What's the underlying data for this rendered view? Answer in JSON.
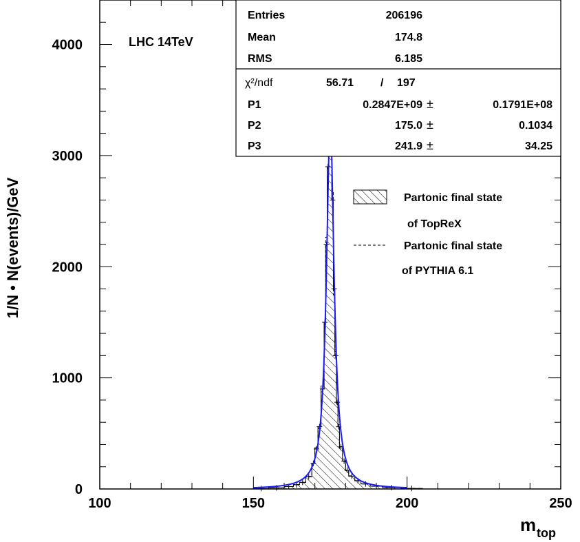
{
  "chart_data": {
    "type": "histogram",
    "ylabel": "1/N • N(events)/GeV",
    "xlabel_main": "m",
    "xlabel_sub": "top",
    "annotation": "LHC 14TeV",
    "xlim": [
      100,
      250
    ],
    "ylim": [
      0,
      4400
    ],
    "x_ticks": [
      100,
      150,
      200,
      250
    ],
    "y_ticks": [
      0,
      1000,
      2000,
      3000,
      4000
    ],
    "stats": {
      "entries_label": "Entries",
      "entries": "206196",
      "mean_label": "Mean",
      "mean": "174.8",
      "rms_label": "RMS",
      "rms": "6.185",
      "chi_label": "χ²/ndf",
      "chi_value": "56.71",
      "chi_sep": "/",
      "ndf": "197",
      "params": [
        {
          "name": "P1",
          "value": "0.2847E+09",
          "pm": "±",
          "error": "0.1791E+08"
        },
        {
          "name": "P2",
          "value": "175.0",
          "pm": "±",
          "error": "0.1034"
        },
        {
          "name": "P3",
          "value": "241.9",
          "pm": "±",
          "error": "34.25"
        }
      ]
    },
    "legend": {
      "hatched_line1": "Partonic final state",
      "hatched_line2": "of TopReX",
      "dashed_line1": "Partonic final state",
      "dashed_line2": "of PYTHIA 6.1"
    },
    "histogram": {
      "bin_edges": [
        150,
        155,
        160,
        163,
        165,
        167,
        169,
        170,
        171,
        172,
        173,
        173.5,
        174,
        174.5,
        175,
        175.5,
        176,
        176.5,
        177,
        177.5,
        178,
        179,
        180,
        181,
        183,
        185,
        188,
        192,
        198,
        205
      ],
      "values": [
        4,
        10,
        22,
        38,
        60,
        110,
        230,
        360,
        560,
        900,
        1500,
        2200,
        2900,
        3200,
        3150,
        2600,
        1800,
        1200,
        780,
        560,
        380,
        250,
        170,
        115,
        75,
        45,
        25,
        12,
        5
      ]
    },
    "fit": {
      "type": "breit-wigner",
      "peak": 175.0,
      "gamma": 1.5,
      "max": 3300,
      "range": [
        150,
        200
      ],
      "color": "#1a1aff"
    }
  }
}
